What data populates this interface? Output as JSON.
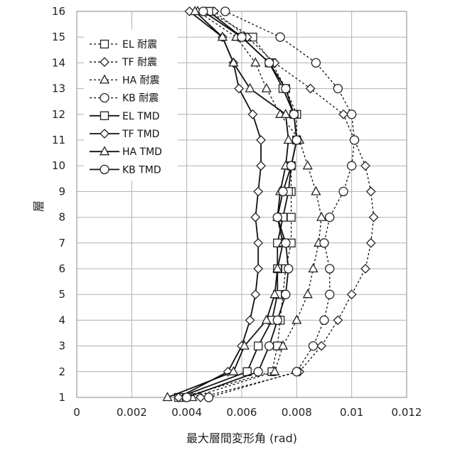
{
  "chart_data": {
    "type": "line",
    "orientation": "horizontal-x-value",
    "xlabel": "最大層間変形角 (rad)",
    "ylabel": "層",
    "xlim": [
      0,
      0.012
    ],
    "ylim": [
      1,
      16
    ],
    "xticks": [
      "0",
      "0.002",
      "0.004",
      "0.006",
      "0.008",
      "0.01",
      "0.012"
    ],
    "yticks": [
      "1",
      "2",
      "3",
      "4",
      "5",
      "6",
      "7",
      "8",
      "9",
      "10",
      "11",
      "12",
      "13",
      "14",
      "15",
      "16"
    ],
    "grid": true,
    "legend_position": "top-left",
    "floors": [
      1,
      2,
      3,
      4,
      5,
      6,
      7,
      8,
      9,
      10,
      11,
      12,
      13,
      14,
      15,
      16
    ],
    "series": [
      {
        "name": "EL 耐震",
        "marker": "square",
        "line": "dashed",
        "values": [
          0.0038,
          0.0071,
          0.0073,
          0.0074,
          0.0075,
          0.0076,
          0.0078,
          0.0078,
          0.0078,
          0.0078,
          0.008,
          0.008,
          0.0076,
          0.0071,
          0.0064,
          0.0048
        ]
      },
      {
        "name": "TF 耐震",
        "marker": "diamond",
        "line": "dashed",
        "values": [
          0.0045,
          0.0081,
          0.0089,
          0.0095,
          0.01,
          0.0105,
          0.0107,
          0.0108,
          0.0107,
          0.0105,
          0.0101,
          0.0097,
          0.0085,
          0.0072,
          0.0062,
          0.005
        ]
      },
      {
        "name": "HA 耐震",
        "marker": "triangle",
        "line": "dashed",
        "values": [
          0.0042,
          0.0072,
          0.0075,
          0.008,
          0.0084,
          0.0086,
          0.0088,
          0.0089,
          0.0087,
          0.0084,
          0.0081,
          0.0074,
          0.0069,
          0.0065,
          0.0058,
          0.0044
        ]
      },
      {
        "name": "KB 耐震",
        "marker": "circle",
        "line": "dashed",
        "values": [
          0.0048,
          0.008,
          0.0086,
          0.009,
          0.0092,
          0.0092,
          0.009,
          0.0092,
          0.0097,
          0.01,
          0.0101,
          0.01,
          0.0095,
          0.0087,
          0.0074,
          0.0054
        ]
      },
      {
        "name": "EL TMD",
        "marker": "square",
        "line": "solid",
        "values": [
          0.0037,
          0.0062,
          0.0066,
          0.0071,
          0.0073,
          0.0073,
          0.0073,
          0.0075,
          0.0077,
          0.0078,
          0.008,
          0.0079,
          0.0075,
          0.007,
          0.006,
          0.0048
        ]
      },
      {
        "name": "TF TMD",
        "marker": "diamond",
        "line": "solid",
        "values": [
          0.0037,
          0.0055,
          0.006,
          0.0063,
          0.0065,
          0.0066,
          0.0066,
          0.0065,
          0.0066,
          0.0067,
          0.0067,
          0.0064,
          0.0059,
          0.0057,
          0.0053,
          0.0041
        ]
      },
      {
        "name": "HA TMD",
        "marker": "triangle",
        "line": "solid",
        "values": [
          0.0033,
          0.0057,
          0.0061,
          0.0069,
          0.0072,
          0.0073,
          0.0075,
          0.0073,
          0.0074,
          0.0076,
          0.0077,
          0.0076,
          0.0063,
          0.0057,
          0.0053,
          0.0043
        ]
      },
      {
        "name": "KB TMD",
        "marker": "circle",
        "line": "solid",
        "values": [
          0.004,
          0.0066,
          0.007,
          0.0073,
          0.0076,
          0.0077,
          0.0076,
          0.0073,
          0.0075,
          0.0078,
          0.008,
          0.0079,
          0.0076,
          0.007,
          0.006,
          0.0046
        ]
      }
    ]
  }
}
